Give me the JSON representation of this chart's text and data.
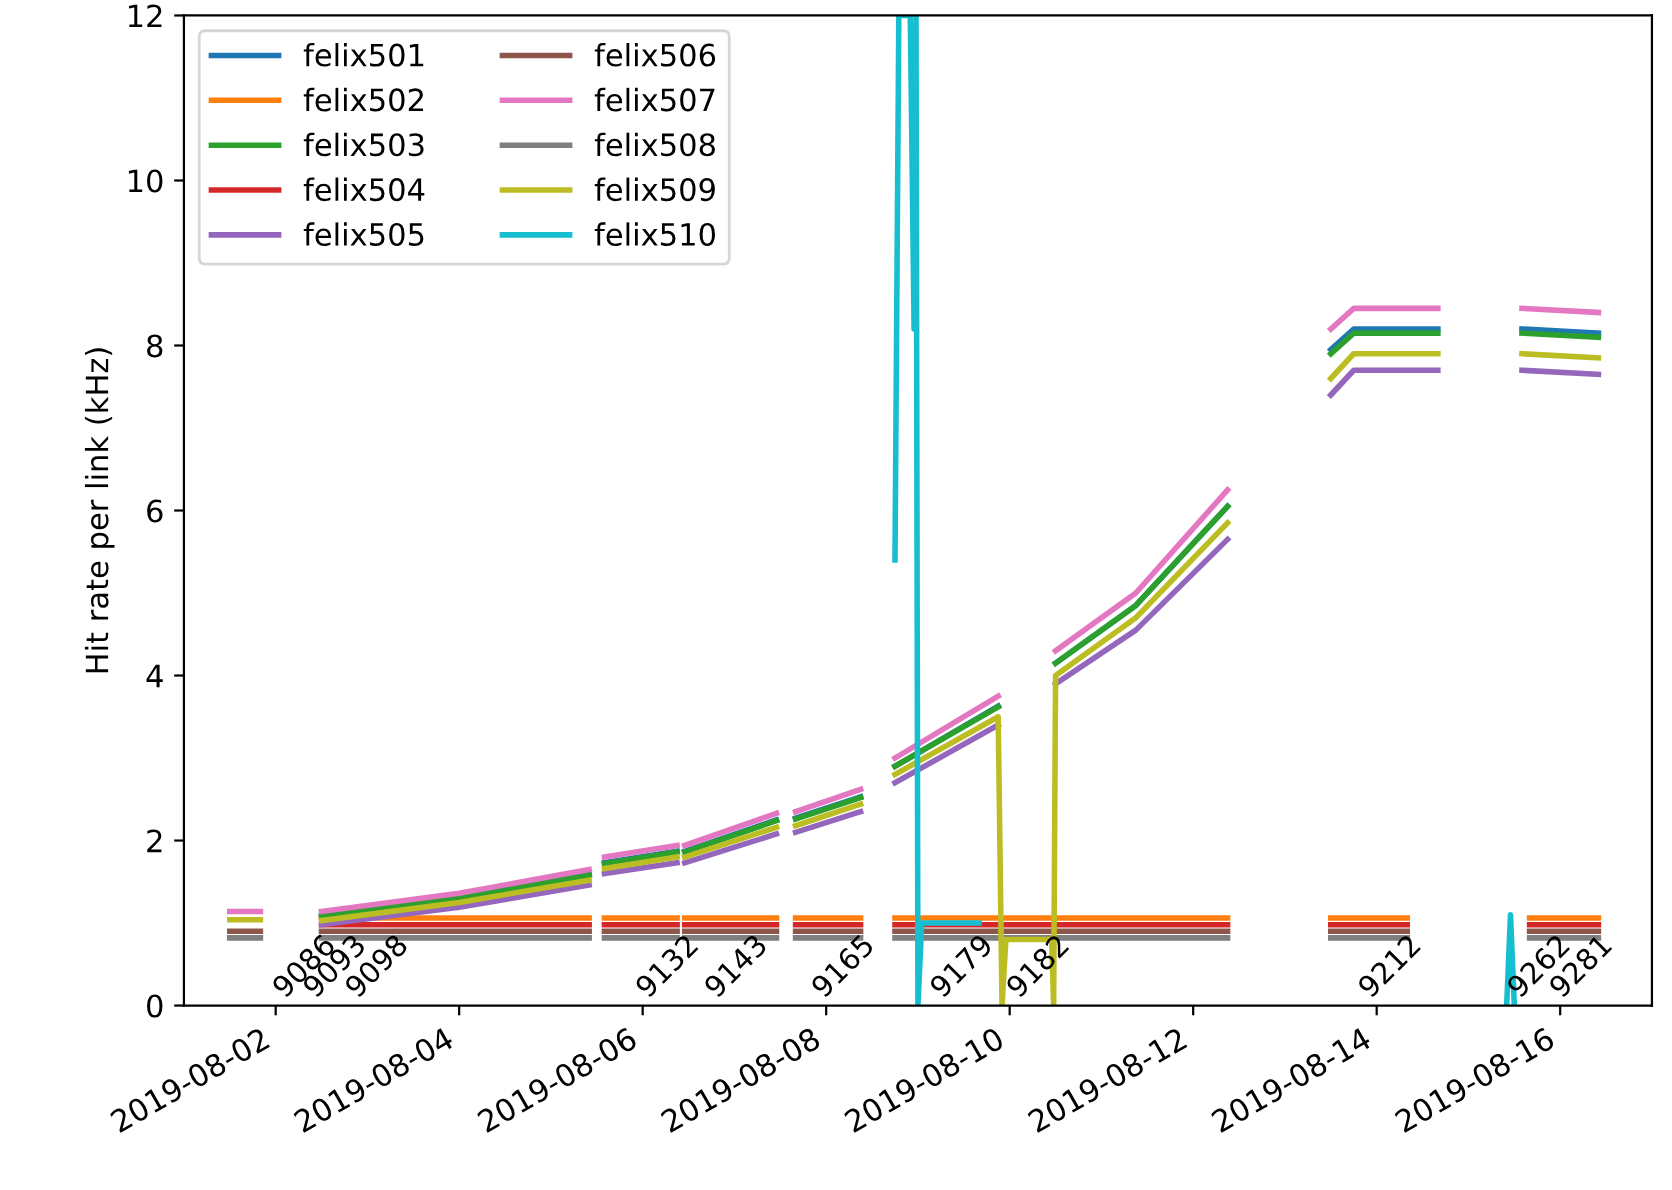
{
  "chart_data": {
    "type": "line",
    "ylabel": "Hit rate per link (kHz)",
    "xlim": [
      "2019-08-01T00:00",
      "2019-08-17T00:00"
    ],
    "xticks": [
      "2019-08-02",
      "2019-08-04",
      "2019-08-06",
      "2019-08-08",
      "2019-08-10",
      "2019-08-12",
      "2019-08-14",
      "2019-08-16"
    ],
    "ylim": [
      0,
      12
    ],
    "yticks": [
      0,
      2,
      4,
      6,
      8,
      10,
      12
    ],
    "grid": false,
    "legend": "top left",
    "line_style": "solid",
    "series": [
      {
        "name": "felix501",
        "color": "#1f77b4",
        "x": [
          "2019-08-02T12:00",
          "2019-08-04T00:00",
          "2019-08-05T10:00",
          "2019-08-05T12:00",
          "2019-08-05T14:00",
          "2019-08-06T09:00",
          "2019-08-06T10:00",
          "2019-08-06T11:00",
          "2019-08-07T11:00",
          "2019-08-07T13:00",
          "2019-08-07T16:00",
          "2019-08-08T09:00",
          "2019-08-08T13:00",
          "2019-08-08T18:00",
          "2019-08-09T21:00",
          "2019-08-10T00:00",
          "2019-08-10T12:00",
          "2019-08-11T09:00",
          "2019-08-12T09:00",
          "2019-08-13T00:00",
          "2019-08-13T12:00",
          "2019-08-13T18:00",
          "2019-08-14T16:00",
          "2019-08-15T00:00",
          "2019-08-15T14:00",
          "2019-08-16T10:00"
        ],
        "values": [
          1.09,
          1.31,
          1.59,
          null,
          1.73,
          1.87,
          null,
          1.87,
          2.25,
          null,
          2.27,
          2.53,
          null,
          2.9,
          3.63,
          null,
          4.15,
          4.85,
          6.05,
          null,
          7.95,
          8.2,
          8.2,
          null,
          8.2,
          8.15
        ]
      },
      {
        "name": "felix502",
        "color": "#ff7f0e",
        "x": [
          "2019-08-02T12:00",
          "2019-08-05T10:00",
          "2019-08-05T12:00",
          "2019-08-05T14:00",
          "2019-08-06T09:00",
          "2019-08-06T10:00",
          "2019-08-06T11:00",
          "2019-08-07T11:00",
          "2019-08-07T13:00",
          "2019-08-07T16:00",
          "2019-08-08T09:00",
          "2019-08-08T13:00",
          "2019-08-08T18:00",
          "2019-08-12T09:00",
          "2019-08-13T00:00",
          "2019-08-13T12:00",
          "2019-08-14T08:00",
          "2019-08-15T00:00",
          "2019-08-15T16:00",
          "2019-08-16T10:00"
        ],
        "values": [
          1.06,
          1.06,
          null,
          1.06,
          1.06,
          null,
          1.06,
          1.06,
          null,
          1.06,
          1.06,
          null,
          1.06,
          1.06,
          null,
          1.06,
          1.06,
          null,
          1.06,
          1.06
        ]
      },
      {
        "name": "felix503",
        "color": "#2ca02c",
        "x": [
          "2019-08-02T12:00",
          "2019-08-04T00:00",
          "2019-08-05T10:00",
          "2019-08-05T12:00",
          "2019-08-05T14:00",
          "2019-08-06T09:00",
          "2019-08-06T10:00",
          "2019-08-06T11:00",
          "2019-08-07T11:00",
          "2019-08-07T13:00",
          "2019-08-07T16:00",
          "2019-08-08T09:00",
          "2019-08-08T13:00",
          "2019-08-08T18:00",
          "2019-08-09T21:00",
          "2019-08-10T00:00",
          "2019-08-10T12:00",
          "2019-08-11T09:00",
          "2019-08-12T09:00",
          "2019-08-13T00:00",
          "2019-08-13T12:00",
          "2019-08-13T18:00",
          "2019-08-14T16:00",
          "2019-08-15T00:00",
          "2019-08-15T14:00",
          "2019-08-16T10:00"
        ],
        "values": [
          1.08,
          1.3,
          1.58,
          null,
          1.72,
          1.86,
          null,
          1.86,
          2.24,
          null,
          2.26,
          2.52,
          null,
          2.9,
          3.62,
          null,
          4.15,
          4.85,
          6.05,
          null,
          7.9,
          8.15,
          8.15,
          null,
          8.15,
          8.1
        ]
      },
      {
        "name": "felix504",
        "color": "#d62728",
        "x": [
          "2019-08-02T12:00",
          "2019-08-05T10:00",
          "2019-08-05T12:00",
          "2019-08-05T14:00",
          "2019-08-06T09:00",
          "2019-08-06T10:00",
          "2019-08-06T11:00",
          "2019-08-07T11:00",
          "2019-08-07T13:00",
          "2019-08-07T16:00",
          "2019-08-08T09:00",
          "2019-08-08T13:00",
          "2019-08-08T18:00",
          "2019-08-12T09:00",
          "2019-08-13T00:00",
          "2019-08-13T12:00",
          "2019-08-14T08:00",
          "2019-08-15T00:00",
          "2019-08-15T16:00",
          "2019-08-16T10:00"
        ],
        "values": [
          0.98,
          0.98,
          null,
          0.98,
          0.98,
          null,
          0.98,
          0.98,
          null,
          0.98,
          0.98,
          null,
          0.98,
          0.98,
          null,
          0.98,
          0.98,
          null,
          0.98,
          0.98
        ]
      },
      {
        "name": "felix505",
        "color": "#9467bd",
        "x": [
          "2019-08-02T12:00",
          "2019-08-04T00:00",
          "2019-08-05T10:00",
          "2019-08-05T12:00",
          "2019-08-05T14:00",
          "2019-08-06T09:00",
          "2019-08-06T10:00",
          "2019-08-06T11:00",
          "2019-08-07T11:00",
          "2019-08-07T13:00",
          "2019-08-07T16:00",
          "2019-08-08T09:00",
          "2019-08-08T13:00",
          "2019-08-08T18:00",
          "2019-08-09T21:00",
          "2019-08-10T00:00",
          "2019-08-10T12:00",
          "2019-08-11T09:00",
          "2019-08-12T09:00",
          "2019-08-13T00:00",
          "2019-08-13T12:00",
          "2019-08-13T18:00",
          "2019-08-14T16:00",
          "2019-08-15T00:00",
          "2019-08-15T14:00",
          "2019-08-16T10:00"
        ],
        "values": [
          0.98,
          1.19,
          1.46,
          null,
          1.6,
          1.73,
          null,
          1.73,
          2.08,
          null,
          2.1,
          2.35,
          null,
          2.7,
          3.4,
          null,
          3.9,
          4.55,
          5.65,
          null,
          7.4,
          7.7,
          7.7,
          null,
          7.7,
          7.65
        ]
      },
      {
        "name": "felix506",
        "color": "#8c564b",
        "x": [
          "2019-08-01T12:00",
          "2019-08-01T20:00",
          "2019-08-02T00:00",
          "2019-08-02T12:00",
          "2019-08-05T10:00",
          "2019-08-05T12:00",
          "2019-08-05T14:00",
          "2019-08-06T09:00",
          "2019-08-06T10:00",
          "2019-08-06T11:00",
          "2019-08-07T11:00",
          "2019-08-07T13:00",
          "2019-08-07T16:00",
          "2019-08-08T09:00",
          "2019-08-08T13:00",
          "2019-08-08T18:00",
          "2019-08-12T09:00",
          "2019-08-13T00:00",
          "2019-08-13T12:00",
          "2019-08-14T08:00",
          "2019-08-15T00:00",
          "2019-08-15T16:00",
          "2019-08-16T10:00"
        ],
        "values": [
          0.9,
          0.9,
          null,
          0.9,
          0.9,
          null,
          0.9,
          0.9,
          null,
          0.9,
          0.9,
          null,
          0.9,
          0.9,
          null,
          0.9,
          0.9,
          null,
          0.9,
          0.9,
          null,
          0.9,
          0.9
        ]
      },
      {
        "name": "felix507",
        "color": "#e377c2",
        "x": [
          "2019-08-01T12:00",
          "2019-08-01T20:00",
          "2019-08-02T00:00",
          "2019-08-02T12:00",
          "2019-08-04T00:00",
          "2019-08-05T10:00",
          "2019-08-05T12:00",
          "2019-08-05T14:00",
          "2019-08-06T09:00",
          "2019-08-06T10:00",
          "2019-08-06T11:00",
          "2019-08-07T11:00",
          "2019-08-07T13:00",
          "2019-08-07T16:00",
          "2019-08-08T09:00",
          "2019-08-08T13:00",
          "2019-08-08T18:00",
          "2019-08-09T21:00",
          "2019-08-10T00:00",
          "2019-08-10T12:00",
          "2019-08-11T09:00",
          "2019-08-12T09:00",
          "2019-08-13T00:00",
          "2019-08-13T12:00",
          "2019-08-13T18:00",
          "2019-08-14T16:00",
          "2019-08-15T00:00",
          "2019-08-15T14:00",
          "2019-08-16T10:00"
        ],
        "values": [
          1.14,
          1.14,
          null,
          1.14,
          1.36,
          1.65,
          null,
          1.8,
          1.94,
          null,
          1.94,
          2.33,
          null,
          2.35,
          2.62,
          null,
          3.0,
          3.75,
          null,
          4.3,
          5.0,
          6.25,
          null,
          8.2,
          8.45,
          8.45,
          null,
          8.45,
          8.4
        ]
      },
      {
        "name": "felix508",
        "color": "#7f7f7f",
        "x": [
          "2019-08-01T12:00",
          "2019-08-01T20:00",
          "2019-08-02T00:00",
          "2019-08-02T12:00",
          "2019-08-05T10:00",
          "2019-08-05T12:00",
          "2019-08-05T14:00",
          "2019-08-06T09:00",
          "2019-08-06T10:00",
          "2019-08-06T11:00",
          "2019-08-07T11:00",
          "2019-08-07T13:00",
          "2019-08-07T16:00",
          "2019-08-08T09:00",
          "2019-08-08T13:00",
          "2019-08-08T18:00",
          "2019-08-12T09:00",
          "2019-08-13T00:00",
          "2019-08-13T12:00",
          "2019-08-14T08:00",
          "2019-08-15T00:00",
          "2019-08-15T16:00",
          "2019-08-16T10:00"
        ],
        "values": [
          0.82,
          0.82,
          null,
          0.82,
          0.82,
          null,
          0.82,
          0.82,
          null,
          0.82,
          0.82,
          null,
          0.82,
          0.82,
          null,
          0.82,
          0.82,
          null,
          0.82,
          0.82,
          null,
          0.82,
          0.82
        ]
      },
      {
        "name": "felix509",
        "color": "#bcbd22",
        "x": [
          "2019-08-01T12:00",
          "2019-08-01T20:00",
          "2019-08-02T00:00",
          "2019-08-02T12:00",
          "2019-08-04T00:00",
          "2019-08-05T10:00",
          "2019-08-05T12:00",
          "2019-08-05T14:00",
          "2019-08-06T09:00",
          "2019-08-06T10:00",
          "2019-08-06T11:00",
          "2019-08-07T11:00",
          "2019-08-07T13:00",
          "2019-08-07T16:00",
          "2019-08-08T09:00",
          "2019-08-08T13:00",
          "2019-08-08T18:00",
          "2019-08-09T21:00",
          "2019-08-09T22:00",
          "2019-08-09T23:00",
          "2019-08-10T11:00",
          "2019-08-10T11:30",
          "2019-08-10T12:00",
          "2019-08-11T09:00",
          "2019-08-12T09:00",
          "2019-08-13T00:00",
          "2019-08-13T12:00",
          "2019-08-13T18:00",
          "2019-08-14T16:00",
          "2019-08-15T00:00",
          "2019-08-15T14:00",
          "2019-08-16T10:00"
        ],
        "values": [
          1.04,
          1.04,
          null,
          1.03,
          1.25,
          1.52,
          null,
          1.66,
          1.8,
          null,
          1.8,
          2.16,
          null,
          2.18,
          2.44,
          null,
          2.8,
          3.5,
          0,
          0.8,
          0.8,
          0,
          4.0,
          4.7,
          5.85,
          null,
          7.6,
          7.9,
          7.9,
          null,
          7.9,
          7.85
        ]
      },
      {
        "name": "felix510",
        "color": "#17becf",
        "x": [
          "2019-08-08T18:00",
          "2019-08-08T19:00",
          "2019-08-08T22:00",
          "2019-08-08T23:00",
          "2019-08-08T23:30",
          "2019-08-09T00:00",
          "2019-08-09T01:00",
          "2019-08-09T16:00",
          "2019-08-10T00:00",
          "2019-08-15T10:00",
          "2019-08-15T11:00",
          "2019-08-15T12:00"
        ],
        "values": [
          5.4,
          12,
          12,
          8.2,
          12,
          0,
          1.0,
          1.0,
          null,
          0,
          1.1,
          0
        ]
      }
    ],
    "annotations": [
      {
        "text": "9086",
        "x": "2019-08-02T12:00",
        "y": 0.9
      },
      {
        "text": "9093",
        "x": "2019-08-02T20:00",
        "y": 0.9
      },
      {
        "text": "9098",
        "x": "2019-08-03T07:00",
        "y": 0.9
      },
      {
        "text": "9132",
        "x": "2019-08-06T11:00",
        "y": 0.9
      },
      {
        "text": "9143",
        "x": "2019-08-07T05:00",
        "y": 0.9
      },
      {
        "text": "9165",
        "x": "2019-08-08T09:00",
        "y": 0.9
      },
      {
        "text": "9179",
        "x": "2019-08-09T16:00",
        "y": 0.9
      },
      {
        "text": "9182",
        "x": "2019-08-10T12:00",
        "y": 0.9
      },
      {
        "text": "9212",
        "x": "2019-08-14T08:00",
        "y": 0.9
      },
      {
        "text": "9262",
        "x": "2019-08-15T23:00",
        "y": 0.9
      },
      {
        "text": "9281",
        "x": "2019-08-16T10:00",
        "y": 0.9
      }
    ]
  }
}
